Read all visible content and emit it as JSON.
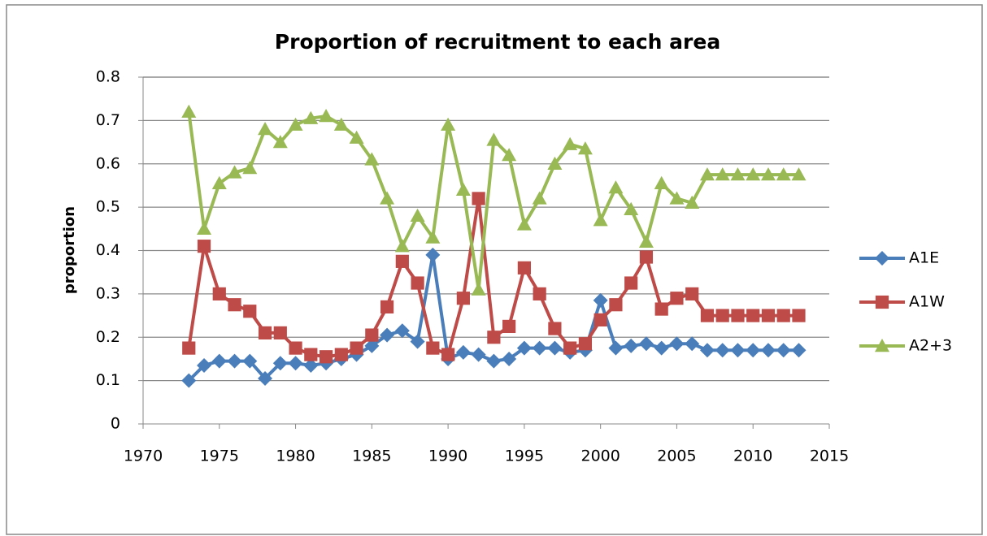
{
  "chart_data": {
    "type": "line",
    "title": "Proportion of recruitment to each area",
    "y_label": "proportion",
    "x": [
      1973,
      1974,
      1975,
      1976,
      1977,
      1978,
      1979,
      1980,
      1981,
      1982,
      1983,
      1984,
      1985,
      1986,
      1987,
      1988,
      1989,
      1990,
      1991,
      1992,
      1993,
      1994,
      1995,
      1996,
      1997,
      1998,
      1999,
      2000,
      2001,
      2002,
      2003,
      2004,
      2005,
      2006,
      2007,
      2008,
      2009,
      2010,
      2011,
      2012,
      2013
    ],
    "series": [
      {
        "name": "A1E",
        "color": "#4a7ebb",
        "marker": "diamond",
        "values": [
          0.1,
          0.135,
          0.145,
          0.145,
          0.145,
          0.105,
          0.14,
          0.14,
          0.135,
          0.14,
          0.15,
          0.16,
          0.18,
          0.205,
          0.215,
          0.19,
          0.39,
          0.15,
          0.165,
          0.16,
          0.145,
          0.15,
          0.175,
          0.175,
          0.175,
          0.165,
          0.17,
          0.285,
          0.175,
          0.18,
          0.185,
          0.175,
          0.185,
          0.185,
          0.17,
          0.17,
          0.17,
          0.17,
          0.17,
          0.17,
          0.17
        ]
      },
      {
        "name": "A1W",
        "color": "#be4b48",
        "marker": "square",
        "values": [
          0.175,
          0.41,
          0.3,
          0.275,
          0.26,
          0.21,
          0.21,
          0.175,
          0.16,
          0.155,
          0.16,
          0.175,
          0.205,
          0.27,
          0.375,
          0.325,
          0.175,
          0.16,
          0.29,
          0.52,
          0.2,
          0.225,
          0.36,
          0.3,
          0.22,
          0.175,
          0.185,
          0.24,
          0.275,
          0.325,
          0.385,
          0.265,
          0.29,
          0.3,
          0.25,
          0.25,
          0.25,
          0.25,
          0.25,
          0.25,
          0.25
        ]
      },
      {
        "name": "A2+3",
        "color": "#98b954",
        "marker": "triangle",
        "values": [
          0.72,
          0.45,
          0.555,
          0.58,
          0.59,
          0.68,
          0.65,
          0.69,
          0.705,
          0.71,
          0.69,
          0.66,
          0.61,
          0.52,
          0.41,
          0.48,
          0.43,
          0.69,
          0.54,
          0.31,
          0.655,
          0.62,
          0.46,
          0.52,
          0.6,
          0.645,
          0.635,
          0.47,
          0.545,
          0.495,
          0.42,
          0.555,
          0.52,
          0.51,
          0.575,
          0.575,
          0.575,
          0.575,
          0.575,
          0.575,
          0.575
        ]
      }
    ],
    "xlim": [
      1970,
      2015
    ],
    "xticks": [
      1970,
      1975,
      1980,
      1985,
      1990,
      1995,
      2000,
      2005,
      2010,
      2015
    ],
    "ylim": [
      0,
      0.8
    ],
    "yticks": [
      0,
      0.1,
      0.2,
      0.3,
      0.4,
      0.5,
      0.6,
      0.7,
      0.8
    ],
    "grid": true,
    "legend": "right"
  }
}
